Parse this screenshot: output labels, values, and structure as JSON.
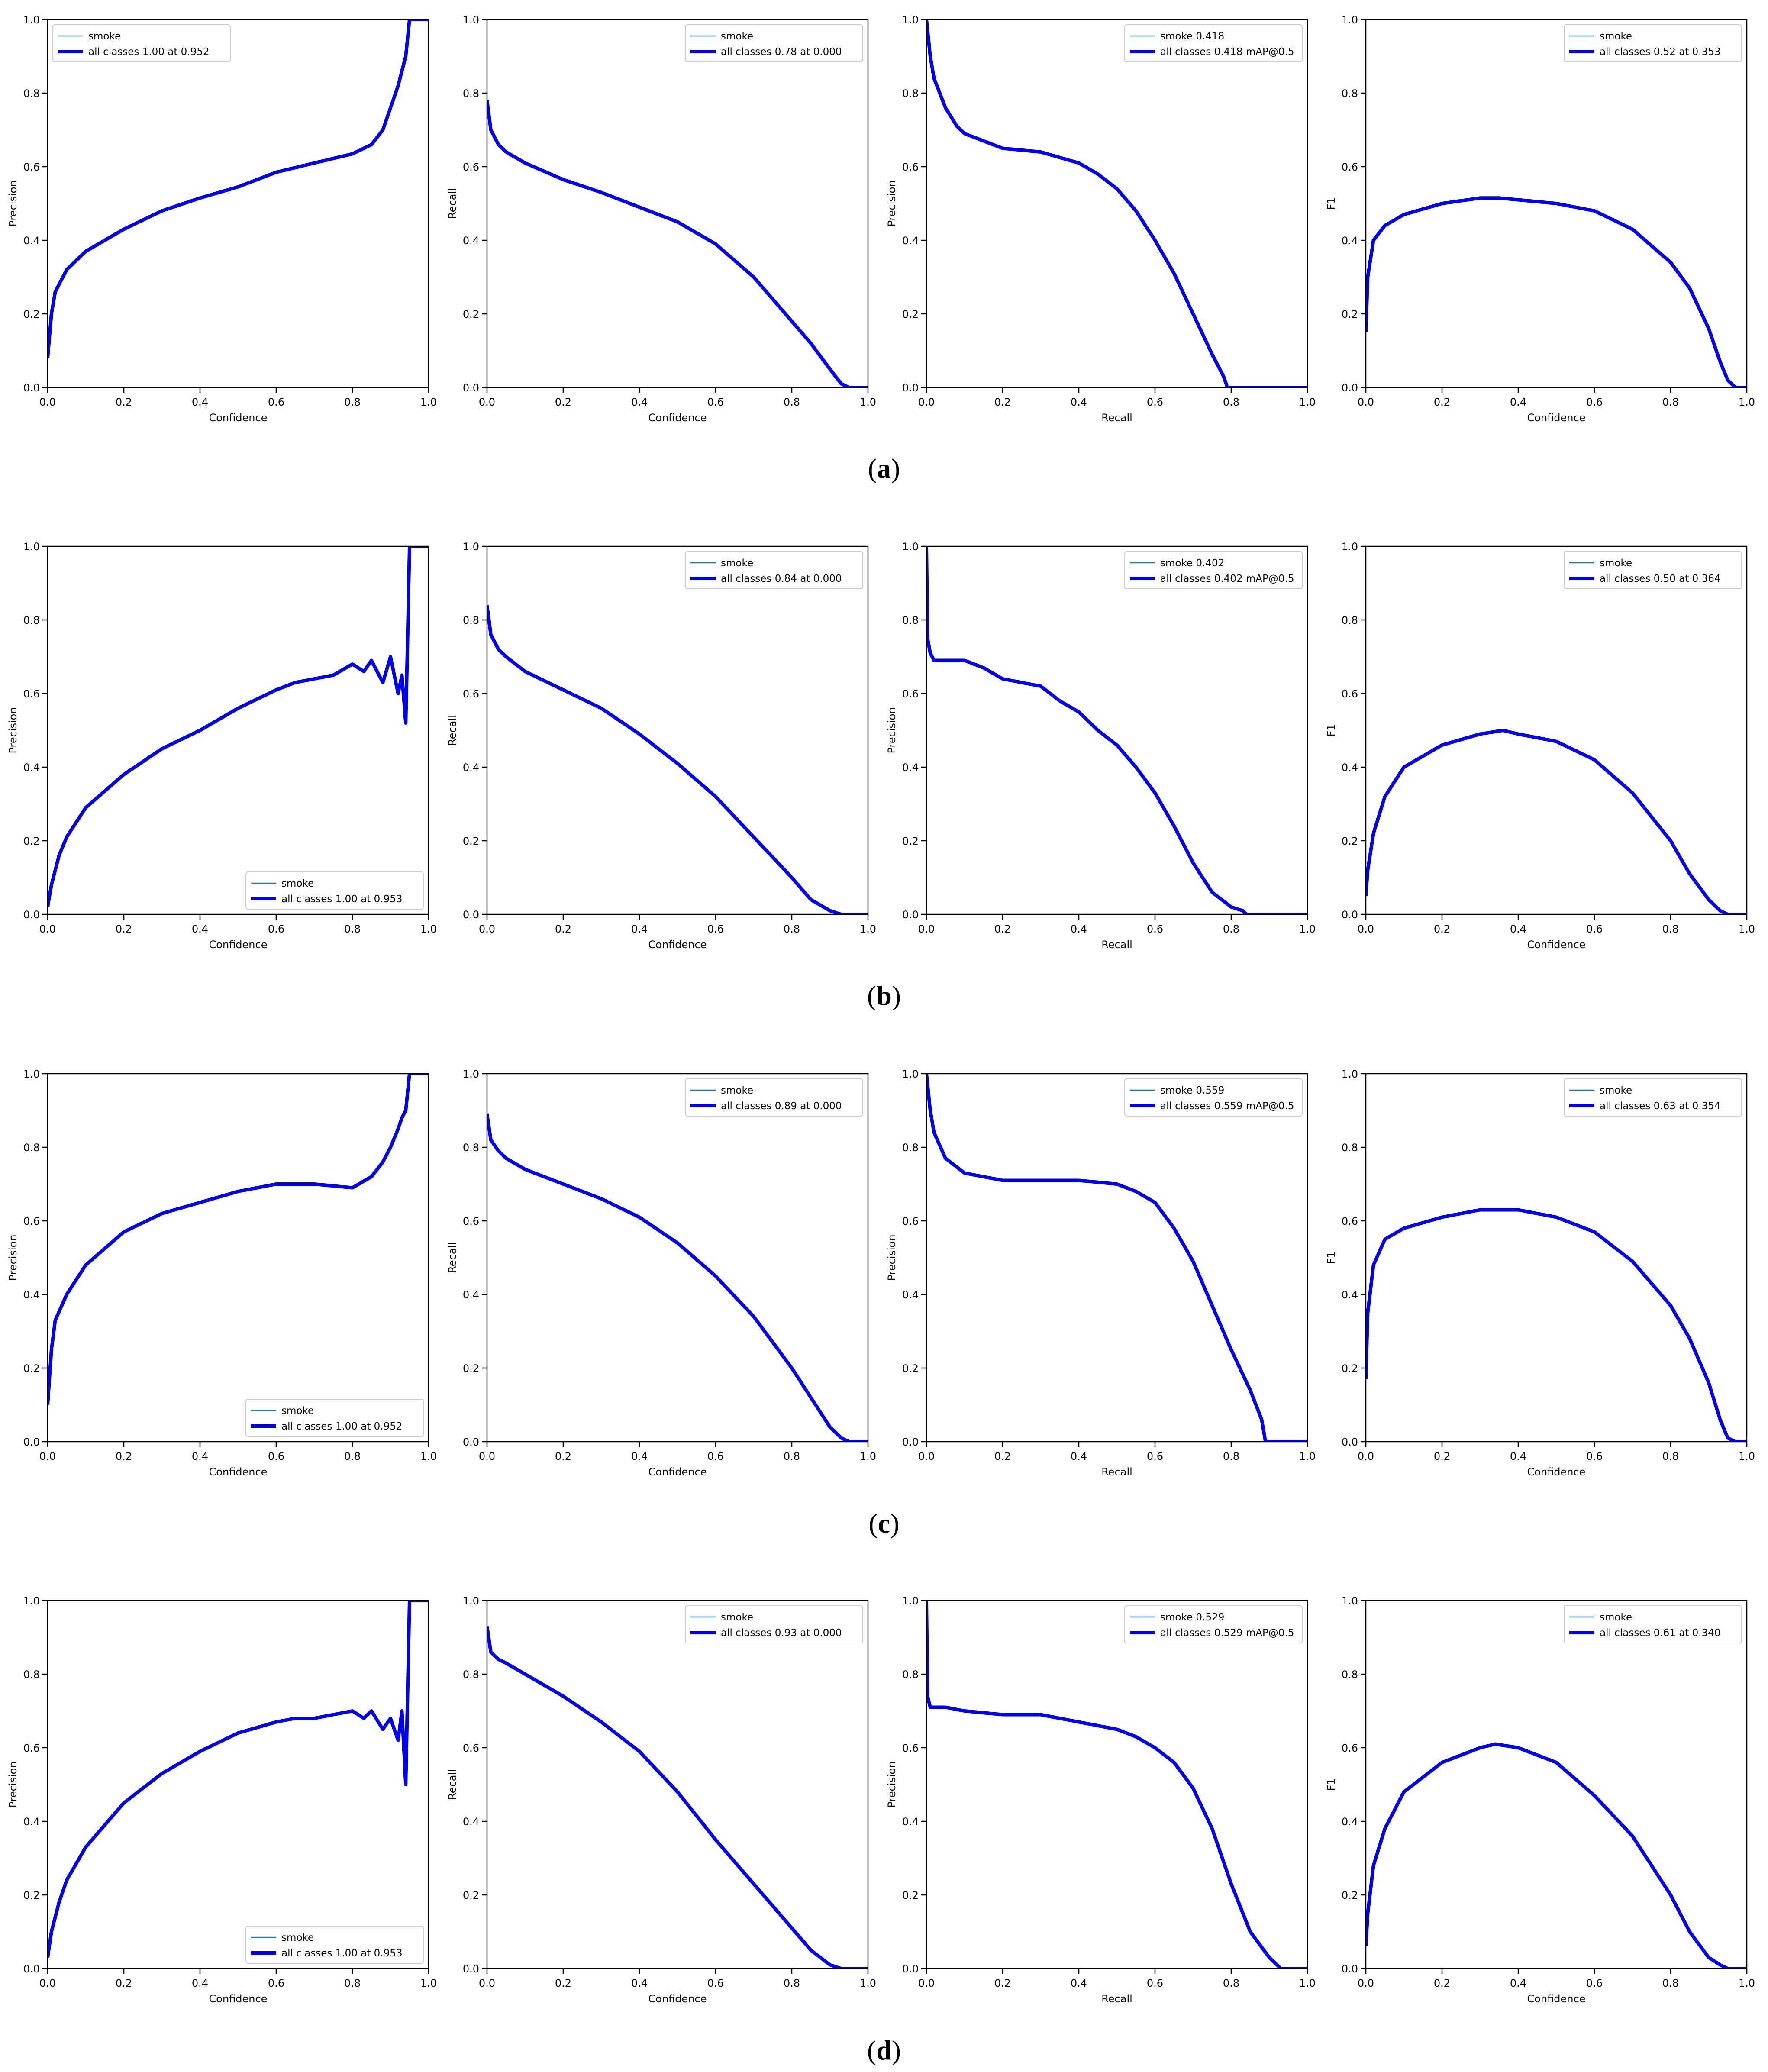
{
  "rows": [
    {
      "caption": "(a)",
      "panels": [
        {
          "type": "line",
          "xlabel": "Confidence",
          "ylabel": "Precision",
          "legend_pos": "top-left",
          "legend": [
            "smoke",
            "all classes 1.00 at 0.952"
          ],
          "x": [
            0,
            0.01,
            0.02,
            0.05,
            0.1,
            0.15,
            0.2,
            0.3,
            0.4,
            0.5,
            0.6,
            0.7,
            0.8,
            0.85,
            0.88,
            0.9,
            0.92,
            0.93,
            0.94,
            0.95,
            0.96,
            1.0
          ],
          "y": [
            0.08,
            0.2,
            0.26,
            0.32,
            0.37,
            0.4,
            0.43,
            0.48,
            0.515,
            0.545,
            0.585,
            0.61,
            0.635,
            0.66,
            0.7,
            0.76,
            0.82,
            0.86,
            0.9,
            1.0,
            1.0,
            1.0
          ]
        },
        {
          "type": "line",
          "xlabel": "Confidence",
          "ylabel": "Recall",
          "legend_pos": "top-right",
          "legend": [
            "smoke",
            "all classes 0.78 at 0.000"
          ],
          "x": [
            0,
            0.01,
            0.03,
            0.05,
            0.1,
            0.2,
            0.3,
            0.4,
            0.5,
            0.6,
            0.7,
            0.8,
            0.85,
            0.9,
            0.93,
            0.95,
            0.97,
            1.0
          ],
          "y": [
            0.78,
            0.7,
            0.66,
            0.64,
            0.61,
            0.565,
            0.53,
            0.49,
            0.45,
            0.39,
            0.3,
            0.18,
            0.12,
            0.05,
            0.01,
            0,
            0,
            0
          ]
        },
        {
          "type": "line",
          "xlabel": "Recall",
          "ylabel": "Precision",
          "legend_pos": "top-right",
          "legend": [
            "smoke 0.418",
            "all classes 0.418 mAP@0.5"
          ],
          "x": [
            0,
            0.005,
            0.01,
            0.02,
            0.05,
            0.08,
            0.1,
            0.15,
            0.2,
            0.3,
            0.4,
            0.45,
            0.5,
            0.55,
            0.6,
            0.65,
            0.7,
            0.75,
            0.78,
            0.79,
            0.8,
            1.0
          ],
          "y": [
            1.0,
            0.95,
            0.9,
            0.84,
            0.76,
            0.71,
            0.69,
            0.67,
            0.65,
            0.64,
            0.61,
            0.58,
            0.54,
            0.48,
            0.4,
            0.31,
            0.2,
            0.09,
            0.03,
            0,
            0,
            0
          ]
        },
        {
          "type": "line",
          "xlabel": "Confidence",
          "ylabel": "F1",
          "legend_pos": "top-right",
          "legend": [
            "smoke",
            "all classes 0.52 at 0.353"
          ],
          "x": [
            0,
            0.005,
            0.02,
            0.05,
            0.1,
            0.2,
            0.3,
            0.35,
            0.4,
            0.5,
            0.6,
            0.7,
            0.8,
            0.85,
            0.9,
            0.93,
            0.95,
            0.97,
            1.0
          ],
          "y": [
            0.15,
            0.3,
            0.4,
            0.44,
            0.47,
            0.5,
            0.515,
            0.515,
            0.51,
            0.5,
            0.48,
            0.43,
            0.34,
            0.27,
            0.16,
            0.07,
            0.02,
            0,
            0
          ]
        }
      ]
    },
    {
      "caption": "(b)",
      "panels": [
        {
          "type": "line",
          "xlabel": "Confidence",
          "ylabel": "Precision",
          "legend_pos": "bottom-right",
          "legend": [
            "smoke",
            "all classes 1.00 at 0.953"
          ],
          "x": [
            0,
            0.01,
            0.03,
            0.05,
            0.1,
            0.2,
            0.3,
            0.4,
            0.5,
            0.6,
            0.65,
            0.7,
            0.75,
            0.8,
            0.83,
            0.85,
            0.88,
            0.9,
            0.92,
            0.93,
            0.94,
            0.945,
            0.95,
            0.96,
            1.0
          ],
          "y": [
            0.02,
            0.08,
            0.16,
            0.21,
            0.29,
            0.38,
            0.45,
            0.5,
            0.56,
            0.61,
            0.63,
            0.64,
            0.65,
            0.68,
            0.66,
            0.69,
            0.63,
            0.7,
            0.6,
            0.65,
            0.52,
            0.75,
            1.0,
            1.0,
            1.0
          ]
        },
        {
          "type": "line",
          "xlabel": "Confidence",
          "ylabel": "Recall",
          "legend_pos": "top-right",
          "legend": [
            "smoke",
            "all classes 0.84 at 0.000"
          ],
          "x": [
            0,
            0.01,
            0.03,
            0.05,
            0.1,
            0.2,
            0.3,
            0.4,
            0.5,
            0.6,
            0.7,
            0.8,
            0.85,
            0.9,
            0.93,
            0.95,
            1.0
          ],
          "y": [
            0.84,
            0.76,
            0.72,
            0.7,
            0.66,
            0.61,
            0.56,
            0.49,
            0.41,
            0.32,
            0.21,
            0.1,
            0.04,
            0.01,
            0,
            0,
            0
          ]
        },
        {
          "type": "line",
          "xlabel": "Recall",
          "ylabel": "Precision",
          "legend_pos": "top-right",
          "legend": [
            "smoke 0.402",
            "all classes 0.402 mAP@0.5"
          ],
          "x": [
            0,
            0.003,
            0.01,
            0.02,
            0.05,
            0.1,
            0.15,
            0.2,
            0.3,
            0.35,
            0.4,
            0.45,
            0.5,
            0.55,
            0.6,
            0.65,
            0.7,
            0.75,
            0.8,
            0.83,
            0.84,
            0.85,
            1.0
          ],
          "y": [
            1.0,
            0.75,
            0.71,
            0.69,
            0.69,
            0.69,
            0.67,
            0.64,
            0.62,
            0.58,
            0.55,
            0.5,
            0.46,
            0.4,
            0.33,
            0.24,
            0.14,
            0.06,
            0.02,
            0.01,
            0,
            0,
            0
          ]
        },
        {
          "type": "line",
          "xlabel": "Confidence",
          "ylabel": "F1",
          "legend_pos": "top-right",
          "legend": [
            "smoke",
            "all classes 0.50 at 0.364"
          ],
          "x": [
            0,
            0.005,
            0.02,
            0.05,
            0.1,
            0.2,
            0.3,
            0.36,
            0.4,
            0.5,
            0.6,
            0.7,
            0.8,
            0.85,
            0.9,
            0.93,
            0.95,
            1.0
          ],
          "y": [
            0.05,
            0.12,
            0.22,
            0.32,
            0.4,
            0.46,
            0.49,
            0.5,
            0.49,
            0.47,
            0.42,
            0.33,
            0.2,
            0.11,
            0.04,
            0.01,
            0,
            0
          ]
        }
      ]
    },
    {
      "caption": "(c)",
      "panels": [
        {
          "type": "line",
          "xlabel": "Confidence",
          "ylabel": "Precision",
          "legend_pos": "bottom-right",
          "legend": [
            "smoke",
            "all classes 1.00 at 0.952"
          ],
          "x": [
            0,
            0.01,
            0.02,
            0.05,
            0.1,
            0.2,
            0.3,
            0.4,
            0.5,
            0.6,
            0.7,
            0.8,
            0.85,
            0.88,
            0.9,
            0.92,
            0.93,
            0.94,
            0.95,
            0.96,
            1.0
          ],
          "y": [
            0.1,
            0.25,
            0.33,
            0.4,
            0.48,
            0.57,
            0.62,
            0.65,
            0.68,
            0.7,
            0.7,
            0.69,
            0.72,
            0.76,
            0.8,
            0.85,
            0.88,
            0.9,
            1.0,
            1.0,
            1.0
          ]
        },
        {
          "type": "line",
          "xlabel": "Confidence",
          "ylabel": "Recall",
          "legend_pos": "top-right",
          "legend": [
            "smoke",
            "all classes 0.89 at 0.000"
          ],
          "x": [
            0,
            0.01,
            0.03,
            0.05,
            0.1,
            0.2,
            0.3,
            0.4,
            0.5,
            0.6,
            0.7,
            0.8,
            0.85,
            0.9,
            0.93,
            0.95,
            1.0
          ],
          "y": [
            0.89,
            0.82,
            0.79,
            0.77,
            0.74,
            0.7,
            0.66,
            0.61,
            0.54,
            0.45,
            0.34,
            0.2,
            0.12,
            0.04,
            0.01,
            0,
            0
          ]
        },
        {
          "type": "line",
          "xlabel": "Recall",
          "ylabel": "Precision",
          "legend_pos": "top-right",
          "legend": [
            "smoke 0.559",
            "all classes 0.559 mAP@0.5"
          ],
          "x": [
            0,
            0.005,
            0.01,
            0.02,
            0.05,
            0.1,
            0.15,
            0.2,
            0.3,
            0.4,
            0.5,
            0.55,
            0.6,
            0.65,
            0.7,
            0.75,
            0.8,
            0.85,
            0.88,
            0.89,
            0.9,
            1.0
          ],
          "y": [
            1.0,
            0.95,
            0.9,
            0.84,
            0.77,
            0.73,
            0.72,
            0.71,
            0.71,
            0.71,
            0.7,
            0.68,
            0.65,
            0.58,
            0.49,
            0.37,
            0.25,
            0.14,
            0.06,
            0,
            0,
            0
          ]
        },
        {
          "type": "line",
          "xlabel": "Confidence",
          "ylabel": "F1",
          "legend_pos": "top-right",
          "legend": [
            "smoke",
            "all classes 0.63 at 0.354"
          ],
          "x": [
            0,
            0.005,
            0.02,
            0.05,
            0.1,
            0.2,
            0.3,
            0.354,
            0.4,
            0.5,
            0.6,
            0.7,
            0.8,
            0.85,
            0.9,
            0.93,
            0.95,
            0.97,
            1.0
          ],
          "y": [
            0.17,
            0.35,
            0.48,
            0.55,
            0.58,
            0.61,
            0.63,
            0.63,
            0.63,
            0.61,
            0.57,
            0.49,
            0.37,
            0.28,
            0.16,
            0.06,
            0.01,
            0,
            0
          ]
        }
      ]
    },
    {
      "caption": "(d)",
      "panels": [
        {
          "type": "line",
          "xlabel": "Confidence",
          "ylabel": "Precision",
          "legend_pos": "bottom-right",
          "legend": [
            "smoke",
            "all classes 1.00 at 0.953"
          ],
          "x": [
            0,
            0.01,
            0.03,
            0.05,
            0.1,
            0.2,
            0.3,
            0.4,
            0.5,
            0.6,
            0.65,
            0.7,
            0.75,
            0.8,
            0.83,
            0.85,
            0.88,
            0.9,
            0.92,
            0.93,
            0.94,
            0.945,
            0.95,
            0.96,
            1.0
          ],
          "y": [
            0.03,
            0.1,
            0.18,
            0.24,
            0.33,
            0.45,
            0.53,
            0.59,
            0.64,
            0.67,
            0.68,
            0.68,
            0.69,
            0.7,
            0.68,
            0.7,
            0.65,
            0.68,
            0.62,
            0.7,
            0.5,
            0.75,
            1.0,
            1.0,
            1.0
          ]
        },
        {
          "type": "line",
          "xlabel": "Confidence",
          "ylabel": "Recall",
          "legend_pos": "top-right",
          "legend": [
            "smoke",
            "all classes 0.93 at 0.000"
          ],
          "x": [
            0,
            0.01,
            0.03,
            0.05,
            0.1,
            0.2,
            0.3,
            0.4,
            0.5,
            0.6,
            0.7,
            0.8,
            0.85,
            0.9,
            0.93,
            0.95,
            1.0
          ],
          "y": [
            0.93,
            0.86,
            0.84,
            0.83,
            0.8,
            0.74,
            0.67,
            0.59,
            0.48,
            0.35,
            0.23,
            0.11,
            0.05,
            0.01,
            0,
            0,
            0
          ]
        },
        {
          "type": "line",
          "xlabel": "Recall",
          "ylabel": "Precision",
          "legend_pos": "top-right",
          "legend": [
            "smoke 0.529",
            "all classes 0.529 mAP@0.5"
          ],
          "x": [
            0,
            0.003,
            0.01,
            0.02,
            0.05,
            0.1,
            0.2,
            0.3,
            0.4,
            0.5,
            0.55,
            0.6,
            0.65,
            0.7,
            0.75,
            0.8,
            0.85,
            0.9,
            0.92,
            0.93,
            0.94,
            1.0
          ],
          "y": [
            1.0,
            0.74,
            0.71,
            0.71,
            0.71,
            0.7,
            0.69,
            0.69,
            0.67,
            0.65,
            0.63,
            0.6,
            0.56,
            0.49,
            0.38,
            0.23,
            0.1,
            0.03,
            0.01,
            0,
            0,
            0
          ]
        },
        {
          "type": "line",
          "xlabel": "Confidence",
          "ylabel": "F1",
          "legend_pos": "top-right",
          "legend": [
            "smoke",
            "all classes 0.61 at 0.340"
          ],
          "x": [
            0,
            0.005,
            0.02,
            0.05,
            0.1,
            0.2,
            0.3,
            0.34,
            0.4,
            0.5,
            0.6,
            0.7,
            0.8,
            0.85,
            0.9,
            0.93,
            0.95,
            1.0
          ],
          "y": [
            0.06,
            0.15,
            0.28,
            0.38,
            0.48,
            0.56,
            0.6,
            0.61,
            0.6,
            0.56,
            0.47,
            0.36,
            0.2,
            0.1,
            0.03,
            0.01,
            0,
            0
          ]
        }
      ]
    }
  ],
  "axis": {
    "ticks": [
      "0.0",
      "0.2",
      "0.4",
      "0.6",
      "0.8",
      "1.0"
    ],
    "xlim": [
      0,
      1
    ],
    "ylim": [
      0,
      1
    ],
    "grid": false
  },
  "colors": {
    "main": "#0000ee",
    "smoke": "#1f77b4",
    "axes": "#000000",
    "legend_border": "#cccccc"
  }
}
